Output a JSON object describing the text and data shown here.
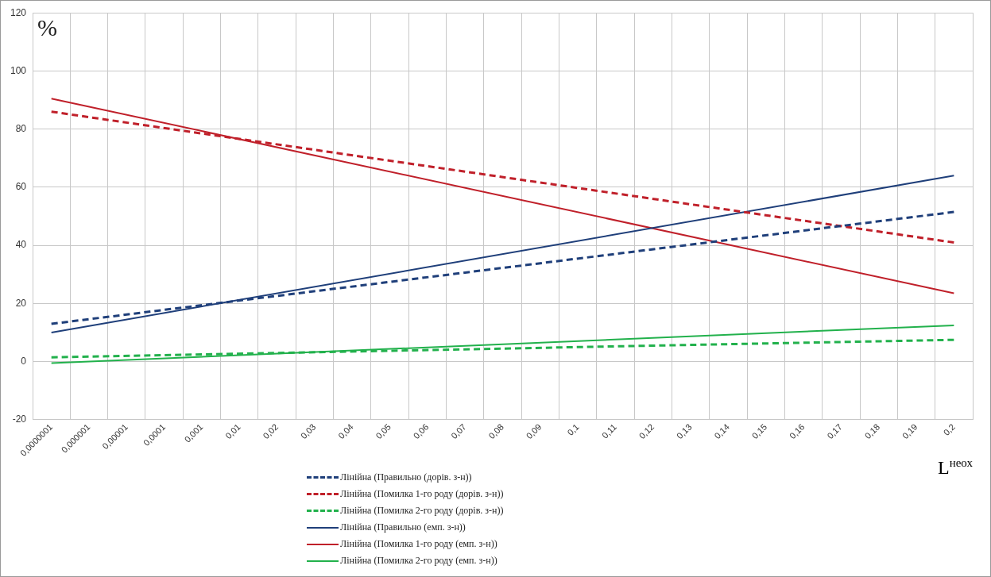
{
  "chart_data": {
    "type": "line",
    "ylabel": "%",
    "xlabel": "L$^{неох}$",
    "categories": [
      "0,0000001",
      "0,000001",
      "0,00001",
      "0,0001",
      "0,001",
      "0,01",
      "0,02",
      "0,03",
      "0,04",
      "0,05",
      "0,06",
      "0,07",
      "0,08",
      "0,09",
      "0,1",
      "0,11",
      "0,12",
      "0,13",
      "0,14",
      "0,15",
      "0,16",
      "0,17",
      "0,18",
      "0,19",
      "0,2"
    ],
    "series": [
      {
        "name": "Лінійна (Правильно (дорів. з-н))",
        "color": "#1f3f7a",
        "line_style": "dashed",
        "values": [
          13,
          null,
          null,
          null,
          null,
          null,
          null,
          null,
          null,
          null,
          null,
          null,
          null,
          null,
          null,
          null,
          null,
          null,
          null,
          null,
          null,
          null,
          null,
          null,
          51.5
        ]
      },
      {
        "name": "Лінійна (Помилка 1-го роду (дорів. з-н))",
        "color": "#c0202a",
        "line_style": "dashed",
        "values": [
          86,
          null,
          null,
          null,
          null,
          null,
          null,
          null,
          null,
          null,
          null,
          null,
          null,
          null,
          null,
          null,
          null,
          null,
          null,
          null,
          null,
          null,
          null,
          null,
          41
        ]
      },
      {
        "name": "Лінійна (Помилка 2-го роду (дорів. з-н))",
        "color": "#22b14c",
        "line_style": "dashed",
        "values": [
          1.5,
          null,
          null,
          null,
          null,
          null,
          null,
          null,
          null,
          null,
          null,
          null,
          null,
          null,
          null,
          null,
          null,
          null,
          null,
          null,
          null,
          null,
          null,
          null,
          7.5
        ]
      },
      {
        "name": "Лінійна (Правильно (емп. з-н))",
        "color": "#1f3f7a",
        "line_style": "solid",
        "values": [
          10,
          null,
          null,
          null,
          null,
          null,
          null,
          null,
          null,
          null,
          null,
          null,
          null,
          null,
          null,
          null,
          null,
          null,
          null,
          null,
          null,
          null,
          null,
          null,
          64
        ]
      },
      {
        "name": "Лінійна (Помилка 1-го роду (емп. з-н))",
        "color": "#c0202a",
        "line_style": "solid",
        "values": [
          90.5,
          null,
          null,
          null,
          null,
          null,
          null,
          null,
          null,
          null,
          null,
          null,
          null,
          null,
          null,
          null,
          null,
          null,
          null,
          null,
          null,
          null,
          null,
          null,
          23.5
        ]
      },
      {
        "name": "Лінійна (Помилка 2-го роду (емп. з-н))",
        "color": "#22b14c",
        "line_style": "solid",
        "values": [
          -0.5,
          null,
          null,
          null,
          null,
          null,
          null,
          null,
          null,
          null,
          null,
          null,
          null,
          null,
          null,
          null,
          null,
          null,
          null,
          null,
          null,
          null,
          null,
          null,
          12.5
        ]
      }
    ],
    "ylim": [
      -20,
      120
    ],
    "yticks": [
      -20,
      0,
      20,
      40,
      60,
      80,
      100,
      120
    ],
    "grid": true,
    "legend": "bottom",
    "marker": "none"
  }
}
